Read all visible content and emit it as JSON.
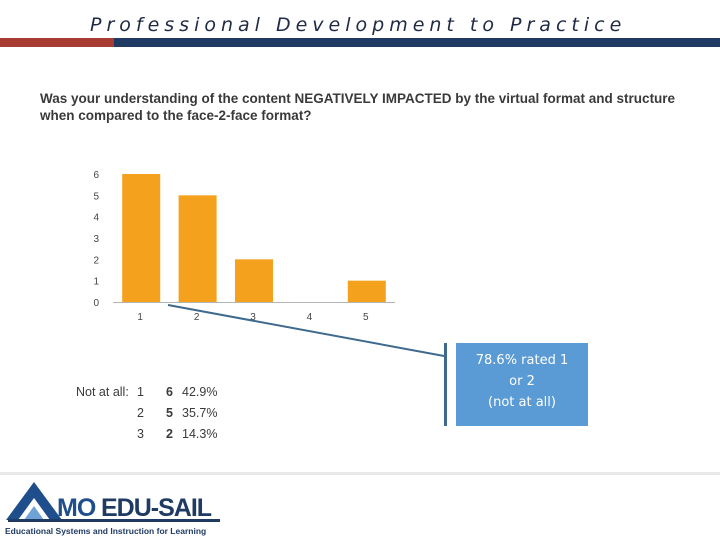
{
  "header": {
    "title": "Professional Development to Practice",
    "accent_red": "#a83b32",
    "accent_blue": "#1f3b63"
  },
  "question": "Was your understanding of the content NEGATIVELY IMPACTED by the virtual format and structure when compared to the face-2-face format?",
  "chart_data": {
    "type": "bar",
    "categories": [
      "1",
      "2",
      "3",
      "4",
      "5"
    ],
    "values": [
      6,
      5,
      2,
      0,
      1
    ],
    "y_ticks": [
      "0",
      "1",
      "2",
      "3",
      "4",
      "5",
      "6"
    ],
    "ylim": [
      0,
      6
    ],
    "bar_color": "#f4a11d",
    "xlabel": "",
    "ylabel": "",
    "grid": false
  },
  "summary": {
    "label": "Not at all:",
    "rows": [
      {
        "rating": "1",
        "count": "6",
        "percent": "42.9%"
      },
      {
        "rating": "2",
        "count": "5",
        "percent": "35.7%"
      },
      {
        "rating": "3",
        "count": "2",
        "percent": "14.3%"
      }
    ]
  },
  "callout": {
    "line1": "78.6% rated 1",
    "line2": "or 2",
    "line3": "(not at all)",
    "color": "#5b9bd5"
  },
  "logo": {
    "brand_mo": "MO",
    "brand_edu": "EDU-SAIL",
    "subtitle": "Educational Systems and Instruction for Learning"
  }
}
